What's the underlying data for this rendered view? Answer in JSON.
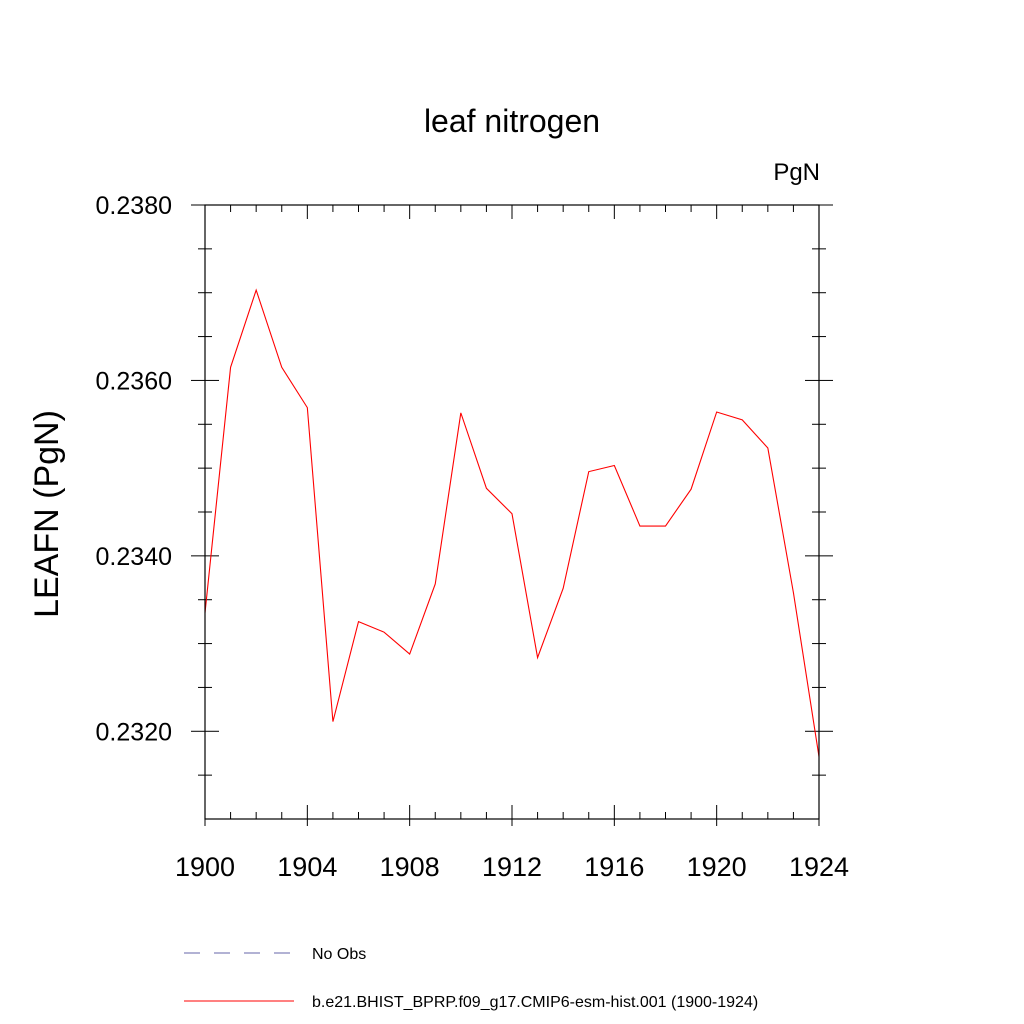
{
  "chart_data": {
    "type": "line",
    "title": "leaf nitrogen",
    "units_label": "PgN",
    "xlabel": "",
    "ylabel": "LEAFN  (PgN)",
    "xlim": [
      1900,
      1924
    ],
    "ylim": [
      0.231,
      0.238
    ],
    "x_ticks": [
      1900,
      1904,
      1908,
      1912,
      1916,
      1920,
      1924
    ],
    "x_minor_ticks": [
      1901,
      1902,
      1903,
      1905,
      1906,
      1907,
      1909,
      1910,
      1911,
      1913,
      1914,
      1915,
      1917,
      1918,
      1919,
      1921,
      1922,
      1923
    ],
    "y_ticks": [
      0.232,
      0.234,
      0.236,
      0.238
    ],
    "y_tick_labels": [
      "0.2320",
      "0.2340",
      "0.2360",
      "0.2380"
    ],
    "y_minor_ticks": [
      0.2315,
      0.2325,
      0.233,
      0.2335,
      0.2345,
      0.235,
      0.2355,
      0.2365,
      0.237,
      0.2375
    ],
    "grid": false,
    "series": [
      {
        "name": "b.e21.BHIST_BPRP.f09_g17.CMIP6-esm-hist.001 (1900-1924)",
        "color": "#ff0000",
        "style": "solid",
        "x": [
          1900,
          1901,
          1902,
          1903,
          1904,
          1905,
          1906,
          1907,
          1908,
          1909,
          1910,
          1911,
          1912,
          1913,
          1914,
          1915,
          1916,
          1917,
          1918,
          1919,
          1920,
          1921,
          1922,
          1923,
          1924
        ],
        "values": [
          0.23335,
          0.23615,
          0.23703,
          0.23615,
          0.23569,
          0.23211,
          0.23325,
          0.23313,
          0.23288,
          0.23368,
          0.23563,
          0.23477,
          0.23448,
          0.23284,
          0.23363,
          0.23496,
          0.23503,
          0.23434,
          0.23434,
          0.23476,
          0.23564,
          0.23555,
          0.23523,
          0.23358,
          0.23171
        ]
      }
    ],
    "legend": [
      {
        "label": "No Obs",
        "color": "#6666aa",
        "style": "dashed"
      },
      {
        "label": "b.e21.BHIST_BPRP.f09_g17.CMIP6-esm-hist.001 (1900-1924)",
        "color": "#ff0000",
        "style": "solid"
      }
    ],
    "legend_position": "bottom"
  }
}
